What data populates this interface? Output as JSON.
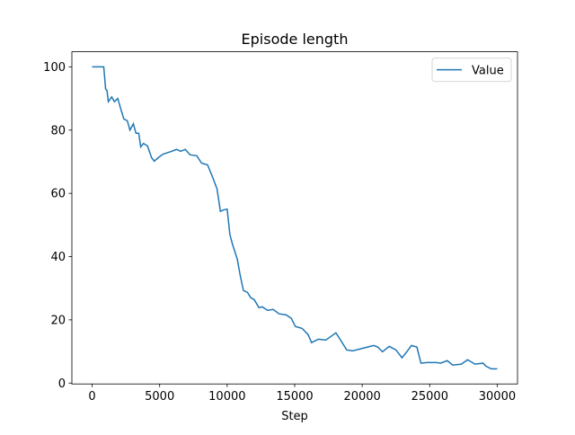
{
  "chart_data": {
    "type": "line",
    "title": "Episode length",
    "x_label": "Step",
    "x": [
      0,
      860,
      1000,
      1100,
      1200,
      1450,
      1650,
      1900,
      2100,
      2350,
      2600,
      2800,
      3050,
      3250,
      3450,
      3600,
      3800,
      4100,
      4400,
      4600,
      4900,
      5250,
      5900,
      6250,
      6550,
      6900,
      7250,
      7750,
      8100,
      8550,
      8950,
      9250,
      9500,
      9750,
      10000,
      10200,
      10400,
      10750,
      10950,
      11200,
      11500,
      11750,
      12000,
      12350,
      12600,
      13000,
      13400,
      13850,
      14350,
      14750,
      15050,
      15550,
      16000,
      16250,
      16750,
      17300,
      17700,
      18050,
      18400,
      18850,
      19300,
      19850,
      20400,
      20850,
      21150,
      21500,
      22000,
      22500,
      22950,
      23300,
      23650,
      24050,
      24350,
      24800,
      25500,
      25800,
      26300,
      26700,
      27350,
      27800,
      28350,
      28950,
      29150,
      29550,
      30000
    ],
    "series": [
      {
        "name": "Value",
        "color": "#1f77b4",
        "values": [
          100,
          100,
          93,
          92.5,
          89,
          90.5,
          89,
          90,
          87,
          83.5,
          83,
          80,
          82,
          79,
          79,
          74.7,
          75.8,
          75,
          71.3,
          70.2,
          71.3,
          72.4,
          73.3,
          73.9,
          73.3,
          73.9,
          72.2,
          71.9,
          69.6,
          69,
          64.8,
          61.4,
          54.3,
          54.8,
          55,
          47,
          43.8,
          39.2,
          34.4,
          29.3,
          28.7,
          27,
          26.4,
          23.9,
          24.1,
          23,
          23.3,
          21.9,
          21.6,
          20.5,
          17.9,
          17.3,
          15.3,
          12.8,
          13.9,
          13.6,
          14.8,
          15.9,
          13.6,
          10.5,
          10.2,
          10.8,
          11.4,
          11.9,
          11.4,
          9.9,
          11.6,
          10.5,
          8,
          9.9,
          11.9,
          11.4,
          6.3,
          6.5,
          6.5,
          6.3,
          7.1,
          5.7,
          6,
          7.4,
          6,
          6.3,
          5.4,
          4.5,
          4.5
        ]
      }
    ],
    "xlim": [
      -1500,
      31500
    ],
    "ylim": [
      -0.27,
      104.78
    ],
    "xticks": [
      0,
      5000,
      10000,
      15000,
      20000,
      25000,
      30000
    ],
    "yticks": [
      0,
      20,
      40,
      60,
      80,
      100
    ],
    "legend": "upper right"
  }
}
